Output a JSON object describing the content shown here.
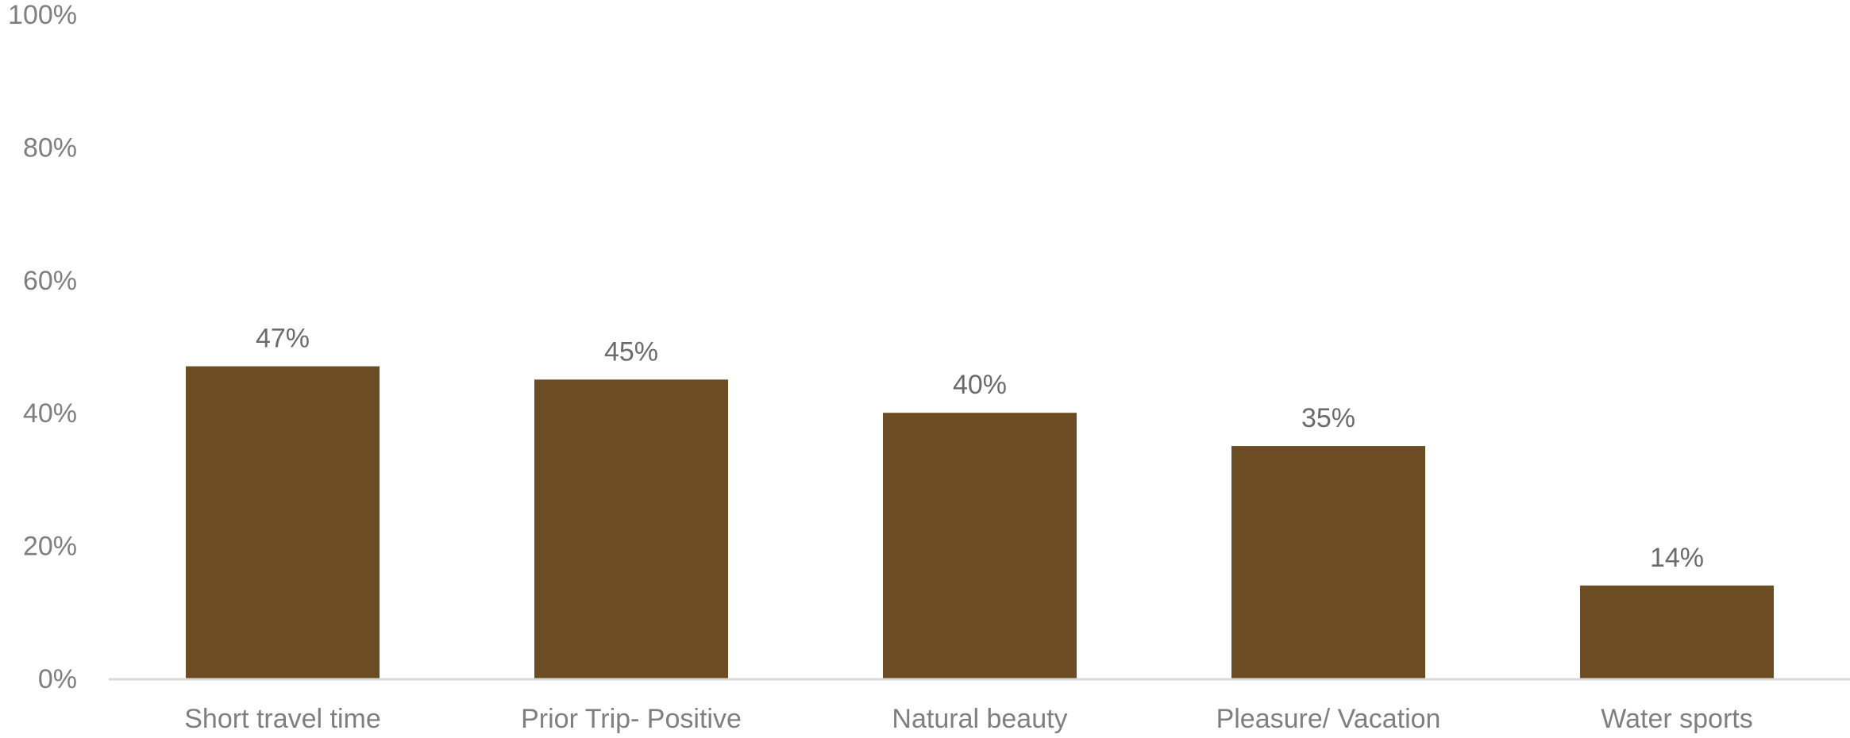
{
  "chart_data": {
    "type": "bar",
    "categories": [
      "Short travel time",
      "Prior Trip- Positive",
      "Natural beauty",
      "Pleasure/ Vacation",
      "Water sports"
    ],
    "values": [
      47,
      45,
      40,
      35,
      14
    ],
    "data_labels": [
      "47%",
      "45%",
      "40%",
      "35%",
      "14%"
    ],
    "y_ticks": [
      0,
      20,
      40,
      60,
      80,
      100
    ],
    "y_tick_labels": [
      "0%",
      "20%",
      "40%",
      "60%",
      "80%",
      "100%"
    ],
    "ylim": [
      0,
      100
    ],
    "title": "",
    "xlabel": "",
    "ylabel": "",
    "grid": false,
    "legend": "none",
    "bar_color": "#6b4c23",
    "axis_color": "#d9d9d9"
  }
}
